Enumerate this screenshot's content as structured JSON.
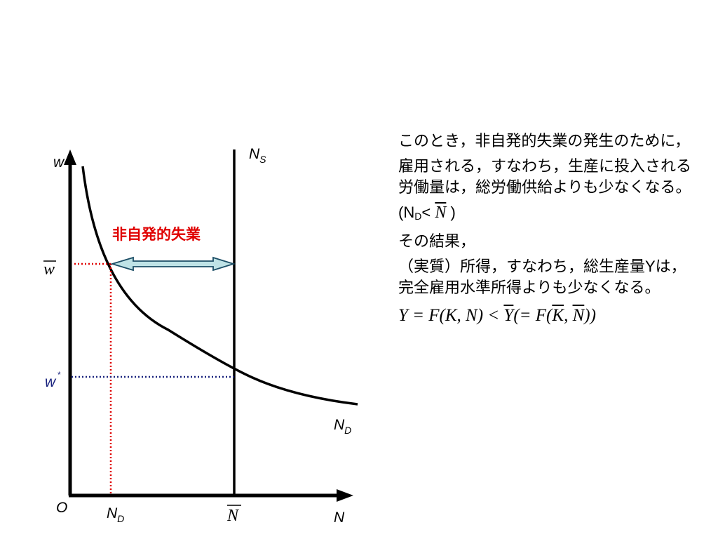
{
  "diagram": {
    "y_axis_label": "w",
    "x_axis_label": "N",
    "origin_label": "O",
    "ns_label": "N",
    "ns_sub": "S",
    "nd_curve_label": "N",
    "nd_curve_sub": "D",
    "wbar_label": "w",
    "wstar_label": "w",
    "wstar_sup": "*",
    "nd_tick_label": "N",
    "nd_tick_sub": "D",
    "nbar_tick_label": "N",
    "unemployment_label": "非自発的失業",
    "colors": {
      "axis": "#000000",
      "wbar_line": "#e00000",
      "wstar_line": "#1a237e",
      "wstar_text": "#1a237e",
      "unemployment_text": "#e00000",
      "arrow_fill": "#bfe3e6",
      "arrow_stroke": "#1c4e66"
    }
  },
  "text": {
    "p1": "このとき，非自発的失業の発生のために，",
    "p2": "雇用される，すなわち，生産に投入される労働量は，総労働供給よりも少なくなる。",
    "p3_open": "(N",
    "p3_sub": "D",
    "p3_lt": "< ",
    "p3_var": "N",
    "p3_close": " )",
    "p4": "その結果，",
    "p5": "（実質）所得，すなわち，総生産量Yは，完全雇用水準所得よりも少なくなる。"
  },
  "formula": {
    "lhs": "Y = F(K, N) < ",
    "ybar": "Y",
    "mid": "(= F(",
    "kbar": "K",
    "comma": ", ",
    "nbar": "N",
    "end": "))"
  }
}
